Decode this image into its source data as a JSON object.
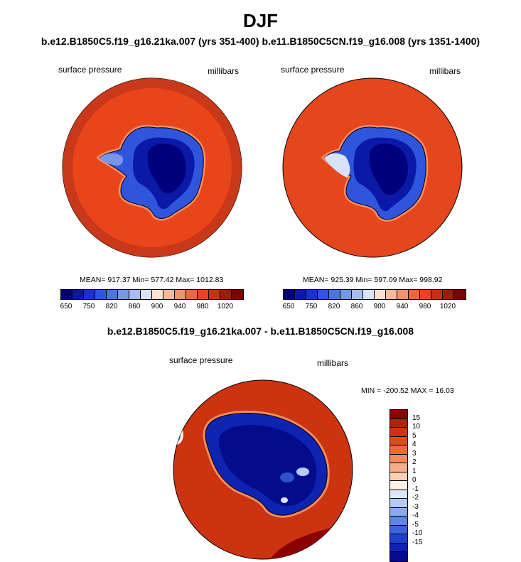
{
  "season_title": "DJF",
  "subtitle": "b.e12.B1850C5.f19_g16.21ka.007 (yrs 351-400) b.e11.B1850C5CN.f19_g16.008 (yrs 1351-1400)",
  "panels": [
    {
      "var_label": "surface pressure",
      "units_label": "millibars",
      "stats": "MEAN= 917.37  Min= 577.42  Max= 1012.83"
    },
    {
      "var_label": "surface pressure",
      "units_label": "millibars",
      "stats": "MEAN= 925.39  Min= 597.09  Max= 998.92"
    }
  ],
  "pressure_colorbar": {
    "colors": [
      "#00007c",
      "#0b1aa6",
      "#1a33c6",
      "#2f55dc",
      "#4a74e4",
      "#7596ea",
      "#a6bcf0",
      "#d8e2f8",
      "#fde0d0",
      "#f9b99c",
      "#f58f6c",
      "#f1663e",
      "#e6461c",
      "#c23410",
      "#a11c08",
      "#800000"
    ],
    "ticks": [
      "650",
      "750",
      "820",
      "860",
      "900",
      "940",
      "980",
      "1020"
    ]
  },
  "diff_title": "b.e12.B1850C5.f19_g16.21ka.007 - b.e11.B1850C5CN.f19_g16.008",
  "diff_panel": {
    "var_label": "surface pressure",
    "units_label": "millibars",
    "stats": "MIN = -200.52 MAX =  16.03"
  },
  "diff_colorbar": {
    "colors": [
      "#8b0000",
      "#b0200a",
      "#cc3310",
      "#e04a1a",
      "#ec6a3a",
      "#f28b60",
      "#f7ad88",
      "#fbd0b6",
      "#fdeee6",
      "#dbe6f8",
      "#b4cbf2",
      "#8aaaea",
      "#5f86e2",
      "#3a63dc",
      "#1f40cc",
      "#0e24b0",
      "#040c8c"
    ],
    "ticks": [
      "15",
      "10",
      "5",
      "4",
      "3",
      "2",
      "1",
      "0",
      "-1",
      "-2",
      "-3",
      "-4",
      "-5",
      "-10",
      "-15"
    ]
  }
}
